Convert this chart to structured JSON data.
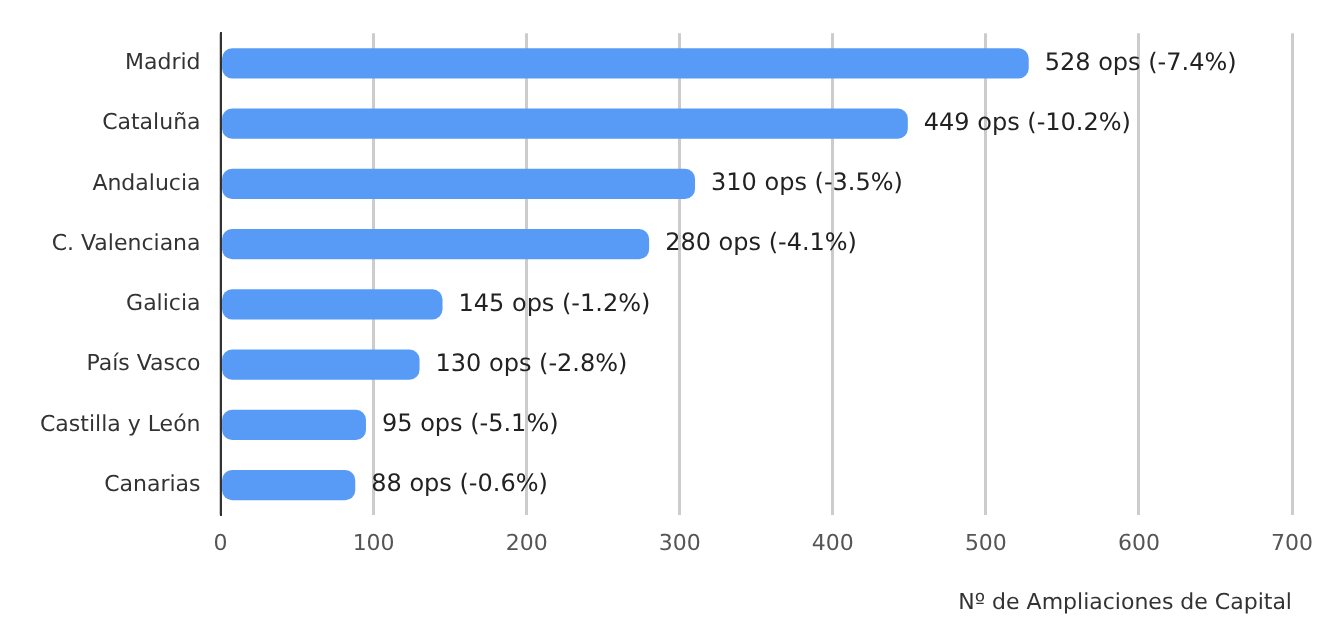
{
  "chart_data": {
    "type": "bar",
    "orientation": "horizontal",
    "xlabel": "Nº de Ampliaciones de Capital",
    "categories": [
      "Madrid",
      "Cataluña",
      "Andalucia",
      "C. Valenciana",
      "Galicia",
      "País Vasco",
      "Castilla y León",
      "Canarias"
    ],
    "values": [
      528,
      449,
      310,
      280,
      145,
      130,
      95,
      88
    ],
    "value_labels": [
      "528 ops (-7.4%)",
      "449 ops (-10.2%)",
      "310 ops (-3.5%)",
      "280 ops (-4.1%)",
      "145 ops (-1.2%)",
      "130 ops (-2.8%)",
      "95 ops (-5.1%)",
      "88 ops (-0.6%)"
    ],
    "color": "#589bf7",
    "xlim": [
      0,
      700
    ],
    "xticks": [
      0,
      100,
      200,
      300,
      400,
      500,
      600,
      700
    ],
    "grid": "x",
    "legend": false
  }
}
